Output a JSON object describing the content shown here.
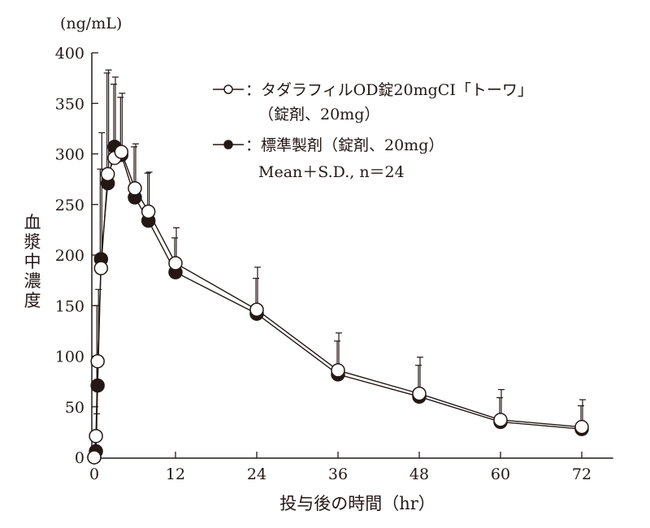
{
  "chart_data": {
    "type": "line",
    "unit_label": "(ng/mL)",
    "ylabel": "血漿中濃度",
    "xlabel": "投与後の時間（hr）",
    "xlim": [
      0,
      74
    ],
    "ylim": [
      0,
      400
    ],
    "x_ticks": [
      0,
      12,
      24,
      36,
      48,
      60,
      72
    ],
    "y_ticks": [
      0,
      50,
      100,
      150,
      200,
      250,
      300,
      350,
      400
    ],
    "grid": false,
    "legend_placement": "top-right",
    "legend": {
      "test_line1": "：タダラフィルOD錠20mgCI「トーワ」",
      "test_line2": "（錠剤、20mg）",
      "ref_line1": "：標準製剤（錠剤、20mg）",
      "note": "Mean＋S.D., n＝24"
    },
    "series": [
      {
        "name": "タダラフィルOD錠20mgCI「トーワ」（錠剤、20mg）",
        "marker": "open-circle",
        "x": [
          0,
          0.25,
          0.5,
          1,
          2,
          3,
          4,
          6,
          8,
          12,
          24,
          36,
          48,
          60,
          72
        ],
        "mean": [
          0,
          21,
          95,
          187,
          280,
          296,
          302,
          266,
          243,
          192,
          146,
          86,
          63,
          37,
          30
        ],
        "sd": [
          0,
          22,
          71,
          134,
          103,
          80,
          58,
          44,
          39,
          35,
          42,
          37,
          36,
          30,
          27
        ]
      },
      {
        "name": "標準製剤（錠剤、20mg）",
        "marker": "filled-circle",
        "x": [
          0,
          0.25,
          0.5,
          1,
          2,
          3,
          4,
          6,
          8,
          12,
          24,
          36,
          48,
          60,
          72
        ],
        "mean": [
          0,
          6,
          71,
          196,
          271,
          307,
          299,
          257,
          234,
          183,
          142,
          82,
          60,
          35,
          28
        ],
        "sd": [
          0,
          10,
          79,
          89,
          109,
          62,
          57,
          50,
          47,
          34,
          35,
          33,
          31,
          24,
          23
        ]
      }
    ]
  }
}
